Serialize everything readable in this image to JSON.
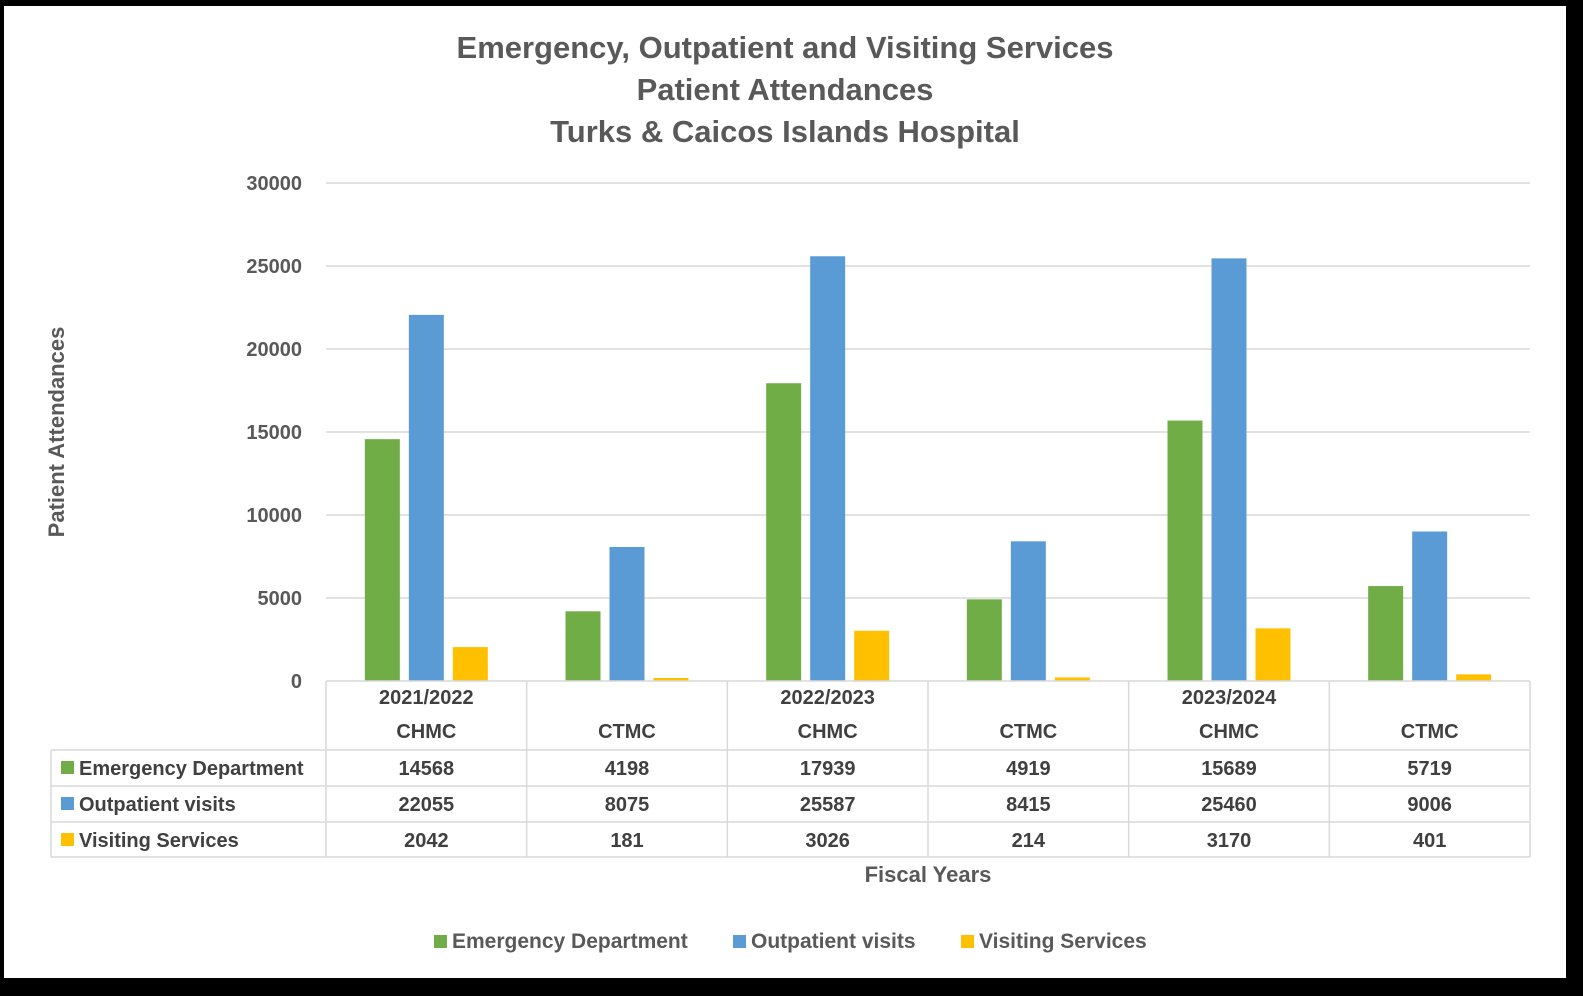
{
  "title_lines": [
    "Emergency, Outpatient and Visiting Services",
    "Patient Attendances",
    "Turks & Caicos Islands Hospital"
  ],
  "chart_data": {
    "type": "bar",
    "title": "Emergency, Outpatient and Visiting Services Patient Attendances Turks & Caicos Islands Hospital",
    "xlabel": "Fiscal Years",
    "ylabel": "Patient Attendances",
    "ylim": [
      0,
      30000
    ],
    "yticks": [
      "0",
      "5000",
      "10000",
      "15000",
      "20000",
      "25000",
      "30000"
    ],
    "year_groups": [
      "2021/2022",
      "2022/2023",
      "2023/2024"
    ],
    "categories": [
      "CHMC",
      "CTMC",
      "CHMC",
      "CTMC",
      "CHMC",
      "CTMC"
    ],
    "series": [
      {
        "name": "Emergency Department",
        "color": "#70AD47",
        "values": [
          14568,
          4198,
          17939,
          4919,
          15689,
          5719
        ]
      },
      {
        "name": "Outpatient visits",
        "color": "#5B9BD5",
        "values": [
          22055,
          8075,
          25587,
          8415,
          25460,
          9006
        ]
      },
      {
        "name": "Visiting Services",
        "color": "#FFC000",
        "values": [
          2042,
          181,
          3026,
          214,
          3170,
          401
        ]
      }
    ],
    "data_table": true,
    "legend": "bottom",
    "grid": true
  }
}
